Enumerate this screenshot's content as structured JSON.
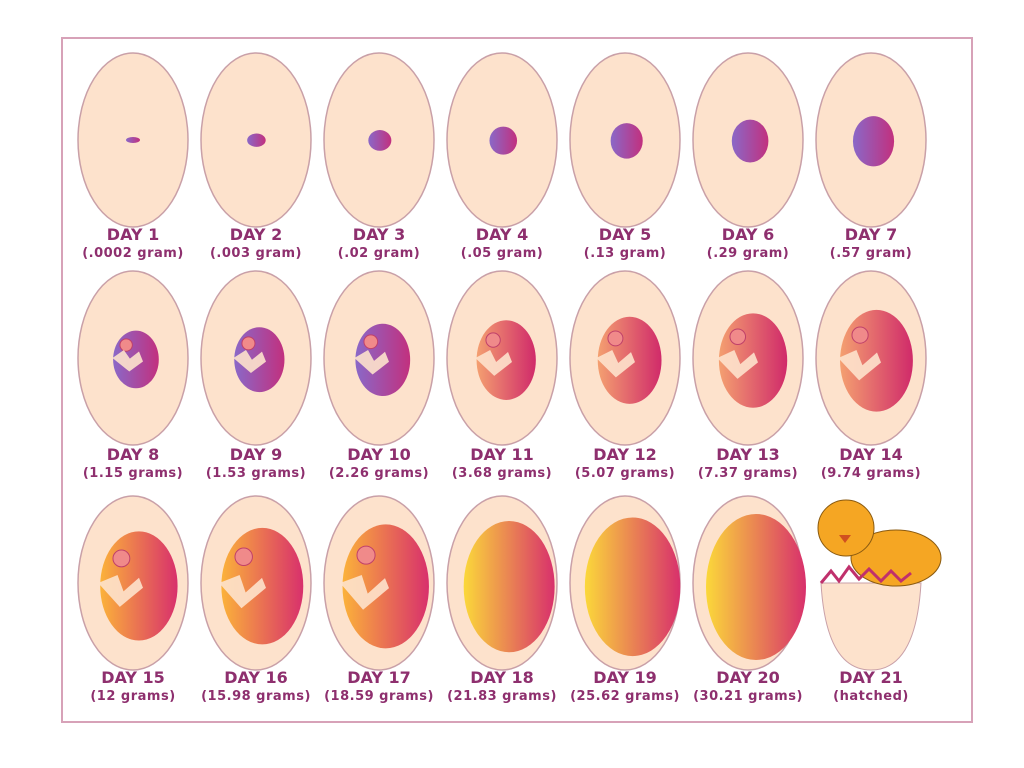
{
  "eggs": [
    {
      "day": "DAY 1",
      "weight": "(.0002 gram)"
    },
    {
      "day": "DAY 2",
      "weight": "(.003 gram)"
    },
    {
      "day": "DAY 3",
      "weight": "(.02 gram)"
    },
    {
      "day": "DAY 4",
      "weight": "(.05 gram)"
    },
    {
      "day": "DAY 5",
      "weight": "(.13 gram)"
    },
    {
      "day": "DAY 6",
      "weight": "(.29 gram)"
    },
    {
      "day": "DAY 7",
      "weight": "(.57 gram)"
    },
    {
      "day": "DAY 8",
      "weight": "(1.15 grams)"
    },
    {
      "day": "DAY 9",
      "weight": "(1.53 grams)"
    },
    {
      "day": "DAY 10",
      "weight": "(2.26 grams)"
    },
    {
      "day": "DAY 11",
      "weight": "(3.68 grams)"
    },
    {
      "day": "DAY 12",
      "weight": "(5.07 grams)"
    },
    {
      "day": "DAY 13",
      "weight": "(7.37 grams)"
    },
    {
      "day": "DAY 14",
      "weight": "(9.74 grams)"
    },
    {
      "day": "DAY 15",
      "weight": "(12 grams)"
    },
    {
      "day": "DAY 16",
      "weight": "(15.98 grams)"
    },
    {
      "day": "DAY 17",
      "weight": "(18.59 grams)"
    },
    {
      "day": "DAY 18",
      "weight": "(21.83 grams)"
    },
    {
      "day": "DAY 19",
      "weight": "(25.62 grams)"
    },
    {
      "day": "DAY 20",
      "weight": "(30.21 grams)"
    },
    {
      "day": "DAY 21",
      "weight": "(hatched)"
    }
  ]
}
